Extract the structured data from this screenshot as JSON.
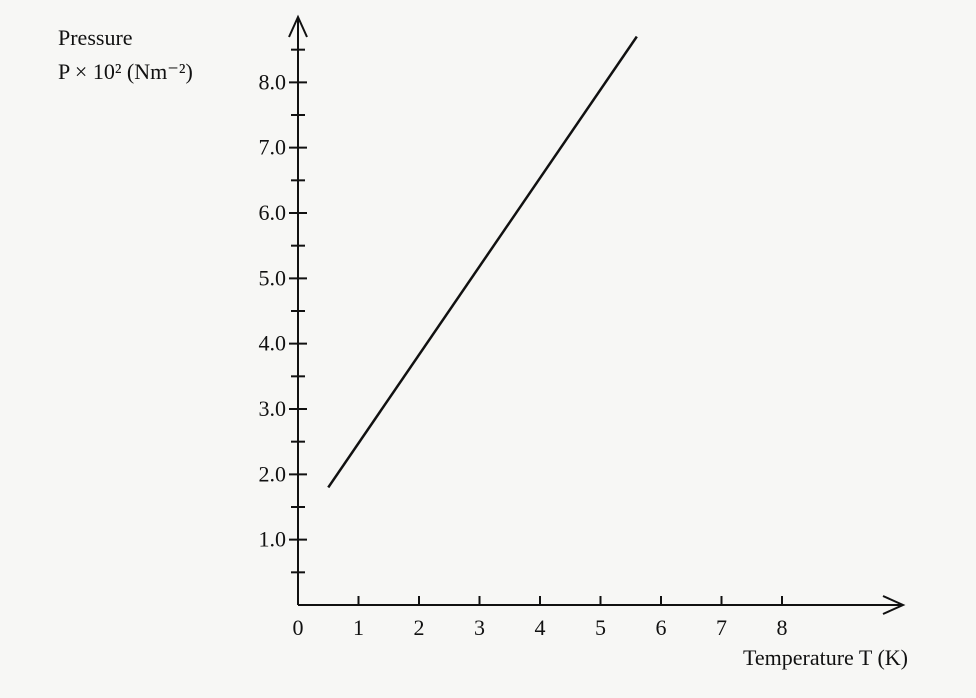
{
  "chart_data": {
    "type": "line",
    "y_label_lines": [
      "Pressure",
      "P × 10² (Nm⁻²)"
    ],
    "x_label": "Temperature T (K)",
    "x": [
      0.5,
      5.6
    ],
    "values": [
      1.8,
      8.7
    ],
    "color": "#111111",
    "xlim": [
      0,
      10
    ],
    "ylim": [
      0,
      9
    ],
    "xticks": [
      0,
      1,
      2,
      3,
      4,
      5,
      6,
      7,
      8
    ],
    "yticks": [
      {
        "value": 1,
        "label": "1.0"
      },
      {
        "value": 2,
        "label": "2.0"
      },
      {
        "value": 3,
        "label": "3.0"
      },
      {
        "value": 4,
        "label": "4.0"
      },
      {
        "value": 5,
        "label": "5.0"
      },
      {
        "value": 6,
        "label": "6.0"
      },
      {
        "value": 7,
        "label": "7.0"
      },
      {
        "value": 8,
        "label": "8.0"
      }
    ],
    "yminorticks": [
      0.5,
      1.5,
      2.5,
      3.5,
      4.5,
      5.5,
      6.5,
      7.5,
      8.5
    ],
    "grid": false
  }
}
